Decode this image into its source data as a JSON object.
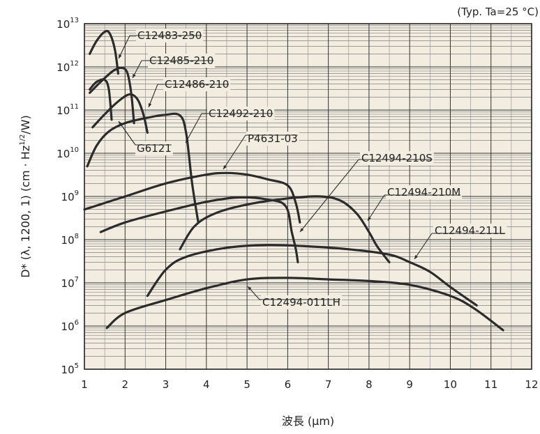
{
  "chart_data": {
    "type": "line",
    "title": "(Typ. Ta=25 °C)",
    "xlabel": "波長 (μm)",
    "ylabel": "D* (λ, 1200, 1) (cm · Hz1/2/W)",
    "ylabel_parts": {
      "prefix": "D* (λ, 1200, 1) (cm · Hz",
      "sup": "1/2",
      "suffix": "/W)"
    },
    "x_scale": "linear",
    "y_scale": "log",
    "xlim": [
      1,
      12
    ],
    "ylim": [
      100000,
      10000000000000
    ],
    "x_ticks": [
      "1",
      "2",
      "3",
      "4",
      "5",
      "6",
      "7",
      "8",
      "9",
      "10",
      "11",
      "12"
    ],
    "y_ticks": [
      {
        "base": "10",
        "exp": "5"
      },
      {
        "base": "10",
        "exp": "6"
      },
      {
        "base": "10",
        "exp": "7"
      },
      {
        "base": "10",
        "exp": "8"
      },
      {
        "base": "10",
        "exp": "9"
      },
      {
        "base": "10",
        "exp": "10"
      },
      {
        "base": "10",
        "exp": "11"
      },
      {
        "base": "10",
        "exp": "12"
      },
      {
        "base": "10",
        "exp": "13"
      }
    ],
    "grid": true,
    "series": [
      {
        "name": "C12483-250",
        "points": [
          [
            1.13,
            2000000000000.0
          ],
          [
            1.3,
            4000000000000.0
          ],
          [
            1.5,
            6500000000000.0
          ],
          [
            1.62,
            6000000000000.0
          ],
          [
            1.75,
            2500000000000.0
          ],
          [
            1.83,
            700000000000.0
          ]
        ]
      },
      {
        "name": "C12485-210",
        "points": [
          [
            1.13,
            250000000000.0
          ],
          [
            1.4,
            450000000000.0
          ],
          [
            1.7,
            800000000000.0
          ],
          [
            1.9,
            950000000000.0
          ],
          [
            2.05,
            750000000000.0
          ],
          [
            2.15,
            250000000000.0
          ],
          [
            2.22,
            50000000000.0
          ]
        ]
      },
      {
        "name": "G6121",
        "points": [
          [
            1.13,
            300000000000.0
          ],
          [
            1.3,
            450000000000.0
          ],
          [
            1.5,
            500000000000.0
          ],
          [
            1.6,
            300000000000.0
          ],
          [
            1.67,
            60000000000.0
          ]
        ]
      },
      {
        "name": "C12486-210",
        "points": [
          [
            1.2,
            40000000000.0
          ],
          [
            1.5,
            80000000000.0
          ],
          [
            1.8,
            150000000000.0
          ],
          [
            2.1,
            230000000000.0
          ],
          [
            2.3,
            180000000000.0
          ],
          [
            2.45,
            80000000000.0
          ],
          [
            2.55,
            30000000000.0
          ]
        ]
      },
      {
        "name": "C12492-210",
        "points": [
          [
            1.07,
            5000000000.0
          ],
          [
            1.3,
            15000000000.0
          ],
          [
            1.6,
            32000000000.0
          ],
          [
            2.0,
            50000000000.0
          ],
          [
            2.5,
            65000000000.0
          ],
          [
            3.0,
            78000000000.0
          ],
          [
            3.35,
            75000000000.0
          ],
          [
            3.5,
            30000000000.0
          ],
          [
            3.65,
            2000000000.0
          ],
          [
            3.8,
            250000000.0
          ]
        ]
      },
      {
        "name": "P4631-03",
        "points": [
          [
            1.0,
            500000000.0
          ],
          [
            2.0,
            1000000000.0
          ],
          [
            3.0,
            2000000000.0
          ],
          [
            4.0,
            3200000000.0
          ],
          [
            4.5,
            3500000000.0
          ],
          [
            5.0,
            3200000000.0
          ],
          [
            5.5,
            2500000000.0
          ],
          [
            6.0,
            1800000000.0
          ],
          [
            6.2,
            700000000.0
          ],
          [
            6.3,
            250000000.0
          ]
        ]
      },
      {
        "name": "C12494-210S",
        "points": [
          [
            1.4,
            150000000.0
          ],
          [
            2.0,
            250000000.0
          ],
          [
            3.0,
            450000000.0
          ],
          [
            4.0,
            750000000.0
          ],
          [
            4.8,
            950000000.0
          ],
          [
            5.5,
            850000000.0
          ],
          [
            5.95,
            600000000.0
          ],
          [
            6.1,
            150000000.0
          ],
          [
            6.2,
            60000000.0
          ],
          [
            6.25,
            30000000.0
          ]
        ]
      },
      {
        "name": "C12494-210M",
        "points": [
          [
            3.35,
            60000000.0
          ],
          [
            3.7,
            200000000.0
          ],
          [
            4.2,
            400000000.0
          ],
          [
            5.0,
            650000000.0
          ],
          [
            6.0,
            900000000.0
          ],
          [
            6.8,
            1000000000.0
          ],
          [
            7.3,
            800000000.0
          ],
          [
            7.7,
            400000000.0
          ],
          [
            8.0,
            150000000.0
          ],
          [
            8.2,
            70000000.0
          ],
          [
            8.5,
            30000000.0
          ]
        ]
      },
      {
        "name": "C12494-211L",
        "points": [
          [
            2.55,
            5000000.0
          ],
          [
            3.0,
            20000000.0
          ],
          [
            3.5,
            40000000.0
          ],
          [
            4.5,
            65000000.0
          ],
          [
            5.5,
            75000000.0
          ],
          [
            6.5,
            70000000.0
          ],
          [
            7.5,
            60000000.0
          ],
          [
            8.5,
            45000000.0
          ],
          [
            9.0,
            30000000.0
          ],
          [
            9.5,
            18000000.0
          ],
          [
            10.0,
            8000000.0
          ],
          [
            10.65,
            3000000.0
          ]
        ]
      },
      {
        "name": "C12494-011LH",
        "points": [
          [
            1.55,
            900000.0
          ],
          [
            2.0,
            2000000.0
          ],
          [
            3.0,
            4000000.0
          ],
          [
            4.0,
            7500000.0
          ],
          [
            5.0,
            12000000.0
          ],
          [
            6.0,
            13000000.0
          ],
          [
            7.0,
            12000000.0
          ],
          [
            8.0,
            11000000.0
          ],
          [
            9.0,
            9000000.0
          ],
          [
            10.0,
            5000000.0
          ],
          [
            10.6,
            2500000.0
          ],
          [
            11.3,
            800000.0
          ]
        ]
      }
    ]
  }
}
